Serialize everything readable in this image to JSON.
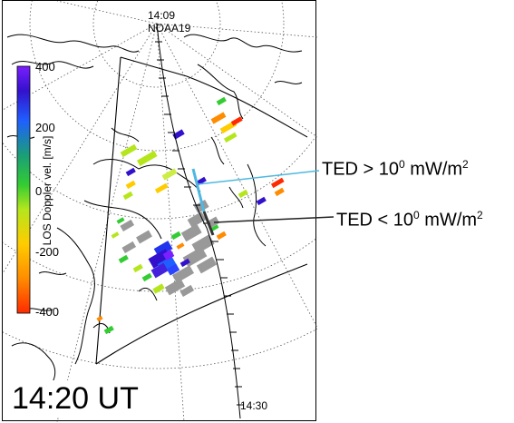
{
  "colorbar": {
    "label": "LOS Doppler vel. [m/s]",
    "ticks": [
      "400",
      "200",
      "0",
      "-200",
      "-400"
    ],
    "stops": [
      "#ff2a00",
      "#ff8c00",
      "#ffcc00",
      "#b5e61d",
      "#33cc33",
      "#1a9e77",
      "#1f5fff",
      "#3311cc",
      "#7a1fff"
    ]
  },
  "time_label": "14:20 UT",
  "track": {
    "start_time": "14:09",
    "satellite": "NOAA19",
    "end_time": "14:30"
  },
  "annotations": {
    "ted_high": {
      "prefix": "TED > 10",
      "exp": "0",
      "unit_base": " mW/m",
      "unit_exp": "2",
      "color": "#4fb8e0"
    },
    "ted_low": {
      "prefix": "TED < 10",
      "exp": "0",
      "unit_base": " mW/m",
      "unit_exp": "2",
      "color": "#222222"
    }
  }
}
